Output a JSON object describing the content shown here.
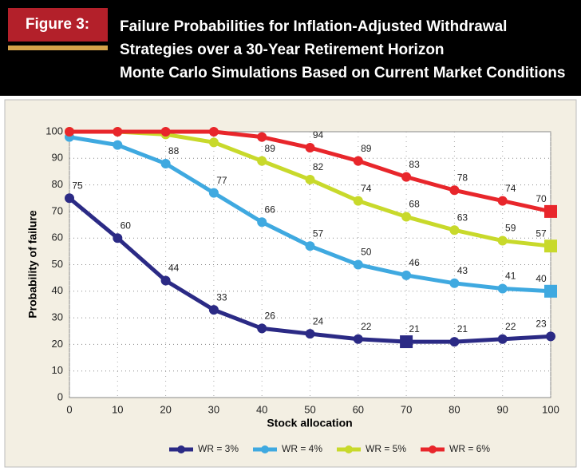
{
  "header": {
    "figure_label": "Figure 3:",
    "title_lines": [
      "Failure Probabilities for Inflation-Adjusted Withdrawal",
      "Strategies over a 30-Year Retirement Horizon",
      "Monte Carlo Simulations Based on Current Market Conditions"
    ]
  },
  "chart_data": {
    "type": "line",
    "x_label": "Stock allocation",
    "y_label": "Probability of failure",
    "x": [
      0,
      10,
      20,
      30,
      40,
      50,
      60,
      70,
      80,
      90,
      100
    ],
    "xlim": [
      0,
      100
    ],
    "xticks": [
      0,
      10,
      20,
      30,
      40,
      50,
      60,
      70,
      80,
      90,
      100
    ],
    "ylim": [
      0,
      100
    ],
    "yticks": [
      0,
      10,
      20,
      30,
      40,
      50,
      60,
      70,
      80,
      90,
      100
    ],
    "grid": true,
    "legend": "bottom",
    "series": [
      {
        "name": "WR = 3%",
        "color": "#2b2a85",
        "values": [
          75,
          60,
          44,
          33,
          26,
          24,
          22,
          21,
          21,
          22,
          23
        ],
        "value_labels": [
          "75",
          "60",
          "44",
          "33",
          "26",
          "24",
          "22",
          "21",
          "21",
          "22",
          "23"
        ],
        "markers": [
          "circle",
          "circle",
          "circle",
          "circle",
          "circle",
          "circle",
          "circle",
          "square",
          "circle",
          "circle",
          "circle"
        ]
      },
      {
        "name": "WR = 4%",
        "color": "#3fa9e0",
        "values": [
          98,
          95,
          88,
          77,
          66,
          57,
          50,
          46,
          43,
          41,
          40
        ],
        "value_labels": [
          null,
          null,
          "88",
          "77",
          "66",
          "57",
          "50",
          "46",
          "43",
          "41",
          "40"
        ],
        "markers": [
          "circle",
          "circle",
          "circle",
          "circle",
          "circle",
          "circle",
          "circle",
          "circle",
          "circle",
          "circle",
          "square"
        ]
      },
      {
        "name": "WR = 5%",
        "color": "#c8d92b",
        "values": [
          100,
          100,
          99,
          96,
          89,
          82,
          74,
          68,
          63,
          59,
          57
        ],
        "value_labels": [
          null,
          null,
          null,
          null,
          "89",
          "82",
          "74",
          "68",
          "63",
          "59",
          "57"
        ],
        "markers": [
          "circle",
          "circle",
          "circle",
          "circle",
          "circle",
          "circle",
          "circle",
          "circle",
          "circle",
          "circle",
          "square"
        ]
      },
      {
        "name": "WR = 6%",
        "color": "#e8262b",
        "values": [
          100,
          100,
          100,
          100,
          98,
          94,
          89,
          83,
          78,
          74,
          70
        ],
        "value_labels": [
          null,
          null,
          null,
          null,
          null,
          "94",
          "89",
          "83",
          "78",
          "74",
          "70"
        ],
        "markers": [
          "circle",
          "circle",
          "circle",
          "circle",
          "circle",
          "circle",
          "circle",
          "circle",
          "circle",
          "circle",
          "square"
        ]
      }
    ]
  }
}
